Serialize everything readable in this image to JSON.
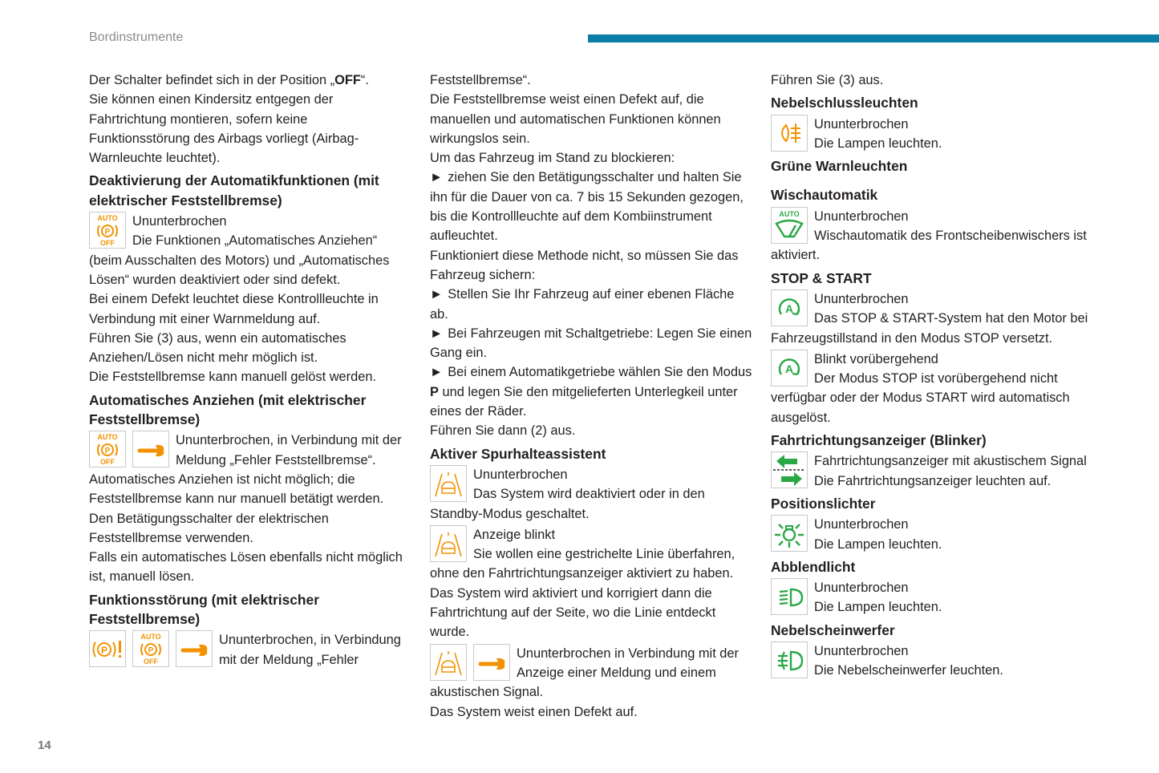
{
  "header": {
    "section": "Bordinstrumente",
    "page_number": "14",
    "accent_color": "#0b7ea7"
  },
  "colors": {
    "orange": "#f39200",
    "green": "#2aa846"
  },
  "columns": [
    [
      {
        "t": "p",
        "text": "Der Schalter befindet sich in der Position „",
        "bold": "OFF",
        "after": "“."
      },
      {
        "t": "p",
        "text": "Sie können einen Kindersitz entgegen der Fahrtrichtung montieren, sofern keine Funktionsstörung des Airbags vorliegt (Airbag-Warnleuchte leuchtet)."
      },
      {
        "t": "h",
        "text": "Deaktivierung der Automatikfunktionen (mit elektrischer Feststellbremse)"
      },
      {
        "t": "i",
        "icons": [
          "auto-p-off-icon"
        ],
        "lines": [
          "Ununterbrochen",
          "Die Funktionen „Automatisches Anziehen“ (beim Ausschalten des Motors) und „Automatisches Lösen“ wurden deaktiviert oder sind defekt."
        ]
      },
      {
        "t": "p",
        "text": "Bei einem Defekt leuchtet diese Kontrollleuchte in Verbindung mit einer Warnmeldung auf."
      },
      {
        "t": "p",
        "text": "Führen Sie (3) aus, wenn ein automatisches Anziehen/Lösen nicht mehr möglich ist."
      },
      {
        "t": "p",
        "text": "Die Feststellbremse kann manuell gelöst werden."
      },
      {
        "t": "h",
        "text": "Automatisches Anziehen (mit elektrischer Feststellbremse)"
      },
      {
        "t": "i",
        "icons": [
          "auto-p-off-icon",
          "wrench-icon"
        ],
        "lines": [
          "Ununterbrochen, in Verbindung mit der Meldung „Fehler Feststellbremse“.",
          "Automatisches Anziehen ist nicht möglich; die Feststellbremse kann nur manuell betätigt werden."
        ]
      },
      {
        "t": "p",
        "text": "Den Betätigungsschalter der elektrischen Feststellbremse verwenden."
      },
      {
        "t": "p",
        "text": "Falls ein automatisches Lösen ebenfalls nicht möglich ist, manuell lösen."
      },
      {
        "t": "h",
        "text": "Funktionsstörung (mit elektrischer Feststellbremse)"
      },
      {
        "t": "i",
        "icons": [
          "parking-brake-fault-icon",
          "auto-p-off-icon",
          "wrench-icon"
        ],
        "lines": [
          "Ununterbrochen, in Verbindung mit der Meldung „Fehler"
        ]
      }
    ],
    [
      {
        "t": "p",
        "text": "Feststellbremse“."
      },
      {
        "t": "p",
        "text": "Die Feststellbremse weist einen Defekt auf, die manuellen und automatischen Funktionen können wirkungslos sein."
      },
      {
        "t": "p",
        "text": "Um das Fahrzeug im Stand zu blockieren:"
      },
      {
        "t": "b",
        "text": "ziehen Sie den Betätigungsschalter und halten Sie ihn für die Dauer von ca. 7 bis 15 Sekunden gezogen, bis die Kontrollleuchte auf dem Kombiinstrument aufleuchtet."
      },
      {
        "t": "p",
        "text": "Funktioniert diese Methode nicht, so müssen Sie das Fahrzeug sichern:"
      },
      {
        "t": "b",
        "text": "Stellen Sie Ihr Fahrzeug auf einer ebenen Fläche ab."
      },
      {
        "t": "b",
        "text": "Bei Fahrzeugen mit Schaltgetriebe: Legen Sie einen Gang ein."
      },
      {
        "t": "b",
        "text": "Bei einem Automatikgetriebe wählen Sie den Modus ",
        "bold": "P",
        "after": " und legen Sie den mitgelieferten Unterlegkeil unter eines der Räder."
      },
      {
        "t": "p",
        "text": "Führen Sie dann (2) aus."
      },
      {
        "t": "h",
        "text": "Aktiver Spurhalteassistent"
      },
      {
        "t": "i",
        "icons": [
          "lane-assist-icon"
        ],
        "lines": [
          "Ununterbrochen",
          "Das System wird deaktiviert oder in den Standby-Modus geschaltet."
        ]
      },
      {
        "t": "i",
        "icons": [
          "lane-assist-icon"
        ],
        "lines": [
          "Anzeige blinkt",
          "Sie wollen eine gestrichelte Linie überfahren, ohne den Fahrtrichtungsanzeiger aktiviert zu haben."
        ]
      },
      {
        "t": "p",
        "text": "Das System wird aktiviert und korrigiert dann die Fahrtrichtung auf der Seite, wo die Linie entdeckt wurde."
      },
      {
        "t": "i",
        "icons": [
          "lane-assist-icon",
          "wrench-icon"
        ],
        "lines": [
          "Ununterbrochen in Verbindung mit der Anzeige einer Meldung und einem akustischen Signal."
        ]
      },
      {
        "t": "p",
        "text": "Das System weist einen Defekt auf."
      }
    ],
    [
      {
        "t": "p",
        "text": "Führen Sie (3) aus."
      },
      {
        "t": "h",
        "text": "Nebelschlussleuchten"
      },
      {
        "t": "i",
        "icons": [
          "rear-fog-light-icon"
        ],
        "lines": [
          "Ununterbrochen",
          "Die Lampen leuchten."
        ]
      },
      {
        "t": "h",
        "text": "Grüne Warnleuchten"
      },
      {
        "t": "h",
        "text": "Wischautomatik",
        "gap": true
      },
      {
        "t": "i",
        "icons": [
          "auto-wiper-icon"
        ],
        "lines": [
          "Ununterbrochen",
          "Wischautomatik des Frontscheibenwischers ist aktiviert."
        ]
      },
      {
        "t": "h",
        "text": "STOP & START"
      },
      {
        "t": "i",
        "icons": [
          "stop-start-icon"
        ],
        "lines": [
          "Ununterbrochen",
          "Das STOP & START-System hat den Motor bei Fahrzeugstillstand in den Modus STOP versetzt."
        ]
      },
      {
        "t": "i",
        "icons": [
          "stop-start-icon"
        ],
        "lines": [
          "Blinkt vorübergehend",
          "Der Modus STOP ist vorübergehend nicht verfügbar oder der Modus START wird automatisch ausgelöst."
        ]
      },
      {
        "t": "h",
        "text": "Fahrtrichtungsanzeiger (Blinker)"
      },
      {
        "t": "i",
        "icons": [
          "turn-signal-icon"
        ],
        "lines": [
          "Fahrtrichtungsanzeiger mit akustischem Signal",
          "Die Fahrtrichtungsanzeiger leuchten auf."
        ]
      },
      {
        "t": "h",
        "text": "Positionslichter"
      },
      {
        "t": "i",
        "icons": [
          "position-lights-icon"
        ],
        "lines": [
          "Ununterbrochen",
          "Die Lampen leuchten."
        ]
      },
      {
        "t": "h",
        "text": "Abblendlicht"
      },
      {
        "t": "i",
        "icons": [
          "low-beam-icon"
        ],
        "lines": [
          "Ununterbrochen",
          "Die Lampen leuchten."
        ]
      },
      {
        "t": "h",
        "text": "Nebelscheinwerfer"
      },
      {
        "t": "i",
        "icons": [
          "front-fog-light-icon"
        ],
        "lines": [
          "Ununterbrochen",
          "Die Nebelscheinwerfer leuchten."
        ]
      }
    ]
  ]
}
